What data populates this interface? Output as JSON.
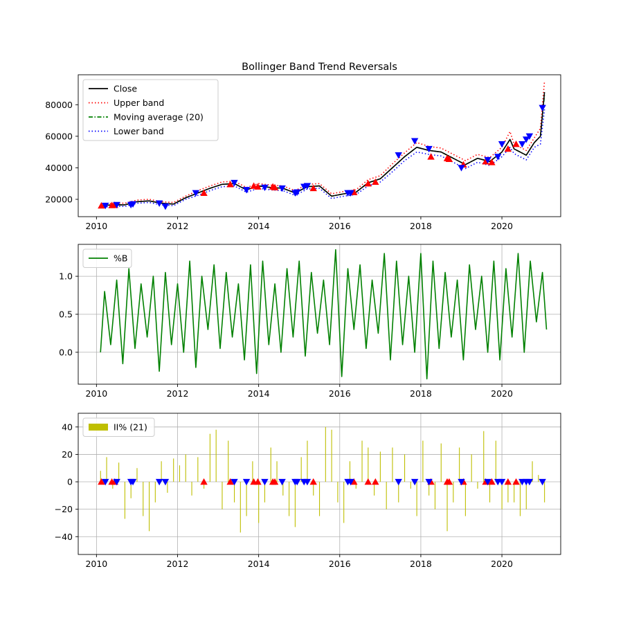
{
  "chart_data": [
    {
      "type": "line",
      "title": "Bollinger Band Trend Reversals",
      "xlabel": "",
      "ylabel": "",
      "xlim": [
        2009.55,
        2021.45
      ],
      "ylim": [
        9000,
        99000
      ],
      "xticks": [
        2010,
        2012,
        2014,
        2016,
        2018,
        2020
      ],
      "xtick_labels": [
        "2010",
        "2012",
        "2014",
        "2016",
        "2018",
        "2020"
      ],
      "yticks": [
        20000,
        40000,
        60000,
        80000
      ],
      "ytick_labels": [
        "20000",
        "40000",
        "60000",
        "80000"
      ],
      "grid": false,
      "legend": {
        "location": "upper left",
        "entries": [
          "Close",
          "Upper band",
          "Moving average (20)",
          "Lower band"
        ]
      },
      "colors": {
        "close": "#000000",
        "upper": "#ff0000",
        "ma": "#008000",
        "lower": "#0000ff",
        "buy": "#ff0000",
        "sell": "#0000ff"
      },
      "x": [
        2010.1,
        2010.4,
        2010.7,
        2011.0,
        2011.3,
        2011.6,
        2011.9,
        2012.2,
        2012.5,
        2012.8,
        2013.1,
        2013.4,
        2013.7,
        2014.0,
        2014.3,
        2014.6,
        2014.9,
        2015.2,
        2015.5,
        2015.8,
        2016.1,
        2016.4,
        2016.7,
        2017.0,
        2017.3,
        2017.6,
        2017.9,
        2018.2,
        2018.5,
        2018.8,
        2019.1,
        2019.4,
        2019.7,
        2020.0,
        2020.2,
        2020.3,
        2020.6,
        2020.8,
        2020.95,
        2021.05
      ],
      "series": [
        {
          "name": "Close",
          "values": [
            16000,
            16500,
            16500,
            18500,
            19000,
            17500,
            17000,
            21000,
            24000,
            27000,
            29500,
            30000,
            26000,
            28500,
            27500,
            27000,
            24000,
            28000,
            28500,
            22000,
            23500,
            24500,
            30500,
            33000,
            40000,
            47000,
            53000,
            51000,
            50000,
            46000,
            42000,
            46000,
            44000,
            50000,
            58000,
            52000,
            48000,
            56000,
            60000,
            88000
          ]
        },
        {
          "name": "Upper band",
          "values": [
            17000,
            17500,
            17500,
            19500,
            20000,
            18500,
            18000,
            22000,
            25500,
            28500,
            31000,
            31500,
            27500,
            30000,
            29000,
            28500,
            25500,
            29500,
            30000,
            23500,
            25000,
            26000,
            32500,
            35000,
            42500,
            49500,
            56000,
            53500,
            52500,
            48500,
            44500,
            48500,
            46500,
            53000,
            63000,
            55000,
            51000,
            59000,
            65000,
            95000
          ]
        },
        {
          "name": "Moving average (20)",
          "values": [
            16000,
            16500,
            16500,
            18500,
            19000,
            17500,
            17000,
            21000,
            24000,
            27000,
            29500,
            30000,
            26000,
            28500,
            27500,
            27000,
            24000,
            28000,
            28500,
            22000,
            23500,
            24500,
            30500,
            33000,
            40000,
            47000,
            53000,
            51000,
            50000,
            46000,
            42000,
            46000,
            44000,
            50000,
            58000,
            52000,
            48000,
            56000,
            60000,
            86000
          ]
        },
        {
          "name": "Lower band",
          "values": [
            15000,
            15500,
            15500,
            17500,
            18000,
            16500,
            16000,
            20000,
            22500,
            25500,
            28000,
            28500,
            24500,
            27000,
            26000,
            25500,
            22500,
            26500,
            27000,
            20500,
            22000,
            23000,
            28500,
            31000,
            37500,
            44500,
            50000,
            48500,
            47500,
            43500,
            39500,
            43500,
            41500,
            47000,
            53000,
            49000,
            45000,
            53000,
            55000,
            77000
          ]
        }
      ],
      "buy_signals": {
        "x": [
          2010.12,
          2010.38,
          2010.45,
          2012.65,
          2013.3,
          2013.88,
          2013.98,
          2014.35,
          2014.4,
          2015.35,
          2016.35,
          2016.7,
          2016.88,
          2018.25,
          2018.65,
          2018.7,
          2019.05,
          2019.6,
          2019.75,
          2020.15,
          2020.35
        ],
        "y": [
          16000,
          16200,
          16300,
          24000,
          29500,
          28500,
          28000,
          28000,
          27500,
          27000,
          24500,
          30000,
          31000,
          47000,
          46000,
          45500,
          42000,
          44000,
          43500,
          52000,
          55000
        ]
      },
      "sell_signals": {
        "x": [
          2010.22,
          2010.5,
          2010.85,
          2010.9,
          2011.55,
          2011.7,
          2012.45,
          2013.4,
          2013.7,
          2014.15,
          2014.58,
          2014.9,
          2014.95,
          2015.12,
          2015.2,
          2016.2,
          2016.27,
          2017.45,
          2017.85,
          2018.2,
          2019.0,
          2019.65,
          2019.9,
          2020.0,
          2020.5,
          2020.6,
          2020.68,
          2021.0
        ],
        "y": [
          16000,
          16500,
          16500,
          17000,
          17500,
          15500,
          24000,
          30500,
          26000,
          27500,
          27000,
          24000,
          24500,
          28000,
          28500,
          24000,
          24000,
          48000,
          57000,
          52000,
          40000,
          45000,
          47000,
          55000,
          55000,
          58000,
          60000,
          78000
        ]
      }
    },
    {
      "type": "line",
      "title": "",
      "xlabel": "",
      "ylabel": "",
      "xlim": [
        2009.55,
        2021.45
      ],
      "ylim": [
        -0.42,
        1.42
      ],
      "xticks": [
        2010,
        2012,
        2014,
        2016,
        2018,
        2020
      ],
      "xtick_labels": [
        "2010",
        "2012",
        "2014",
        "2016",
        "2018",
        "2020"
      ],
      "yticks": [
        0.0,
        0.5,
        1.0
      ],
      "ytick_labels": [
        "0.0",
        "0.5",
        "1.0"
      ],
      "grid": true,
      "legend": {
        "location": "upper left",
        "entries": [
          "%B"
        ]
      },
      "colors": {
        "line": "#008000"
      },
      "series": [
        {
          "name": "%B",
          "x": [
            2010.1,
            2010.2,
            2010.35,
            2010.5,
            2010.65,
            2010.8,
            2010.95,
            2011.1,
            2011.25,
            2011.4,
            2011.55,
            2011.7,
            2011.85,
            2012.0,
            2012.15,
            2012.3,
            2012.45,
            2012.6,
            2012.75,
            2012.9,
            2013.05,
            2013.2,
            2013.35,
            2013.5,
            2013.65,
            2013.8,
            2013.95,
            2014.1,
            2014.25,
            2014.4,
            2014.55,
            2014.7,
            2014.85,
            2015.0,
            2015.15,
            2015.3,
            2015.45,
            2015.6,
            2015.75,
            2015.9,
            2016.05,
            2016.2,
            2016.35,
            2016.5,
            2016.65,
            2016.8,
            2016.95,
            2017.1,
            2017.25,
            2017.4,
            2017.55,
            2017.7,
            2017.85,
            2018.0,
            2018.15,
            2018.3,
            2018.45,
            2018.6,
            2018.75,
            2018.9,
            2019.05,
            2019.2,
            2019.35,
            2019.5,
            2019.65,
            2019.8,
            2019.95,
            2020.1,
            2020.25,
            2020.4,
            2020.55,
            2020.7,
            2020.85,
            2021.0,
            2021.1
          ],
          "values": [
            0.0,
            0.8,
            0.1,
            0.95,
            -0.15,
            1.1,
            0.05,
            0.9,
            0.2,
            1.0,
            -0.25,
            1.05,
            0.1,
            0.9,
            0.0,
            1.2,
            -0.2,
            1.0,
            0.3,
            1.15,
            0.05,
            1.05,
            0.2,
            0.9,
            -0.1,
            1.15,
            -0.28,
            1.2,
            0.1,
            0.9,
            0.0,
            1.1,
            0.2,
            1.2,
            -0.05,
            1.05,
            0.25,
            0.95,
            0.1,
            1.35,
            -0.32,
            1.1,
            0.3,
            1.15,
            0.05,
            0.95,
            0.25,
            1.3,
            -0.1,
            1.2,
            0.1,
            1.0,
            0.0,
            1.3,
            -0.35,
            1.2,
            0.05,
            1.05,
            0.2,
            0.95,
            -0.1,
            1.15,
            0.3,
            1.0,
            0.0,
            1.2,
            -0.1,
            1.1,
            0.2,
            1.3,
            0.0,
            1.2,
            0.4,
            1.05,
            0.3
          ]
        }
      ]
    },
    {
      "type": "bar",
      "title": "",
      "xlabel": "",
      "ylabel": "",
      "xlim": [
        2009.55,
        2021.45
      ],
      "ylim": [
        -53,
        50
      ],
      "xticks": [
        2010,
        2012,
        2014,
        2016,
        2018,
        2020
      ],
      "xtick_labels": [
        "2010",
        "2012",
        "2014",
        "2016",
        "2018",
        "2020"
      ],
      "yticks": [
        -40,
        -20,
        0,
        20,
        40
      ],
      "ytick_labels": [
        "−40",
        "−20",
        "0",
        "20",
        "40"
      ],
      "grid": true,
      "legend": {
        "location": "upper left",
        "entries": [
          "II% (21)"
        ]
      },
      "colors": {
        "bar": "#bfbf00",
        "buy": "#ff0000",
        "sell": "#0000ff"
      },
      "series": [
        {
          "name": "II% (21)",
          "x": [
            2010.1,
            2010.25,
            2010.4,
            2010.55,
            2010.7,
            2010.85,
            2011.0,
            2011.15,
            2011.3,
            2011.45,
            2011.6,
            2011.75,
            2011.9,
            2012.05,
            2012.2,
            2012.35,
            2012.5,
            2012.65,
            2012.8,
            2012.95,
            2013.1,
            2013.25,
            2013.4,
            2013.55,
            2013.7,
            2013.85,
            2014.0,
            2014.15,
            2014.3,
            2014.45,
            2014.6,
            2014.75,
            2014.9,
            2015.05,
            2015.2,
            2015.35,
            2015.5,
            2015.65,
            2015.8,
            2015.95,
            2016.1,
            2016.25,
            2016.4,
            2016.55,
            2016.7,
            2016.85,
            2017.0,
            2017.15,
            2017.3,
            2017.45,
            2017.6,
            2017.75,
            2017.9,
            2018.05,
            2018.2,
            2018.35,
            2018.5,
            2018.65,
            2018.8,
            2018.95,
            2019.1,
            2019.25,
            2019.4,
            2019.55,
            2019.7,
            2019.85,
            2020.0,
            2020.15,
            2020.3,
            2020.45,
            2020.6,
            2020.75,
            2020.9,
            2021.05
          ],
          "values": [
            8,
            18,
            -5,
            14,
            -27,
            -12,
            10,
            -25,
            -36,
            -15,
            15,
            -8,
            17,
            12,
            20,
            -10,
            18,
            -5,
            35,
            38,
            -20,
            30,
            -15,
            -37,
            -25,
            15,
            -30,
            -15,
            25,
            15,
            -10,
            -25,
            -33,
            18,
            30,
            -10,
            -25,
            40,
            38,
            -15,
            -30,
            15,
            -5,
            30,
            25,
            -10,
            22,
            -20,
            25,
            -15,
            20,
            -5,
            -25,
            30,
            -10,
            -20,
            28,
            -36,
            -15,
            25,
            -25,
            20,
            -5,
            37,
            -15,
            30,
            -20,
            -15,
            -15,
            -25,
            -20,
            15,
            5,
            -15
          ]
        }
      ],
      "buy_signals_x": [
        2010.12,
        2010.38,
        2010.45,
        2012.65,
        2013.3,
        2013.88,
        2013.98,
        2014.35,
        2014.4,
        2015.35,
        2016.35,
        2016.7,
        2016.88,
        2018.25,
        2018.65,
        2018.7,
        2019.05,
        2019.6,
        2019.75,
        2020.15,
        2020.35
      ],
      "sell_signals_x": [
        2010.22,
        2010.5,
        2010.85,
        2010.9,
        2011.55,
        2011.7,
        2013.4,
        2013.7,
        2014.15,
        2014.58,
        2014.9,
        2014.95,
        2015.12,
        2015.2,
        2016.2,
        2016.27,
        2017.45,
        2017.85,
        2018.2,
        2019.0,
        2019.65,
        2019.9,
        2020.0,
        2020.5,
        2020.6,
        2020.68,
        2021.0
      ]
    }
  ]
}
